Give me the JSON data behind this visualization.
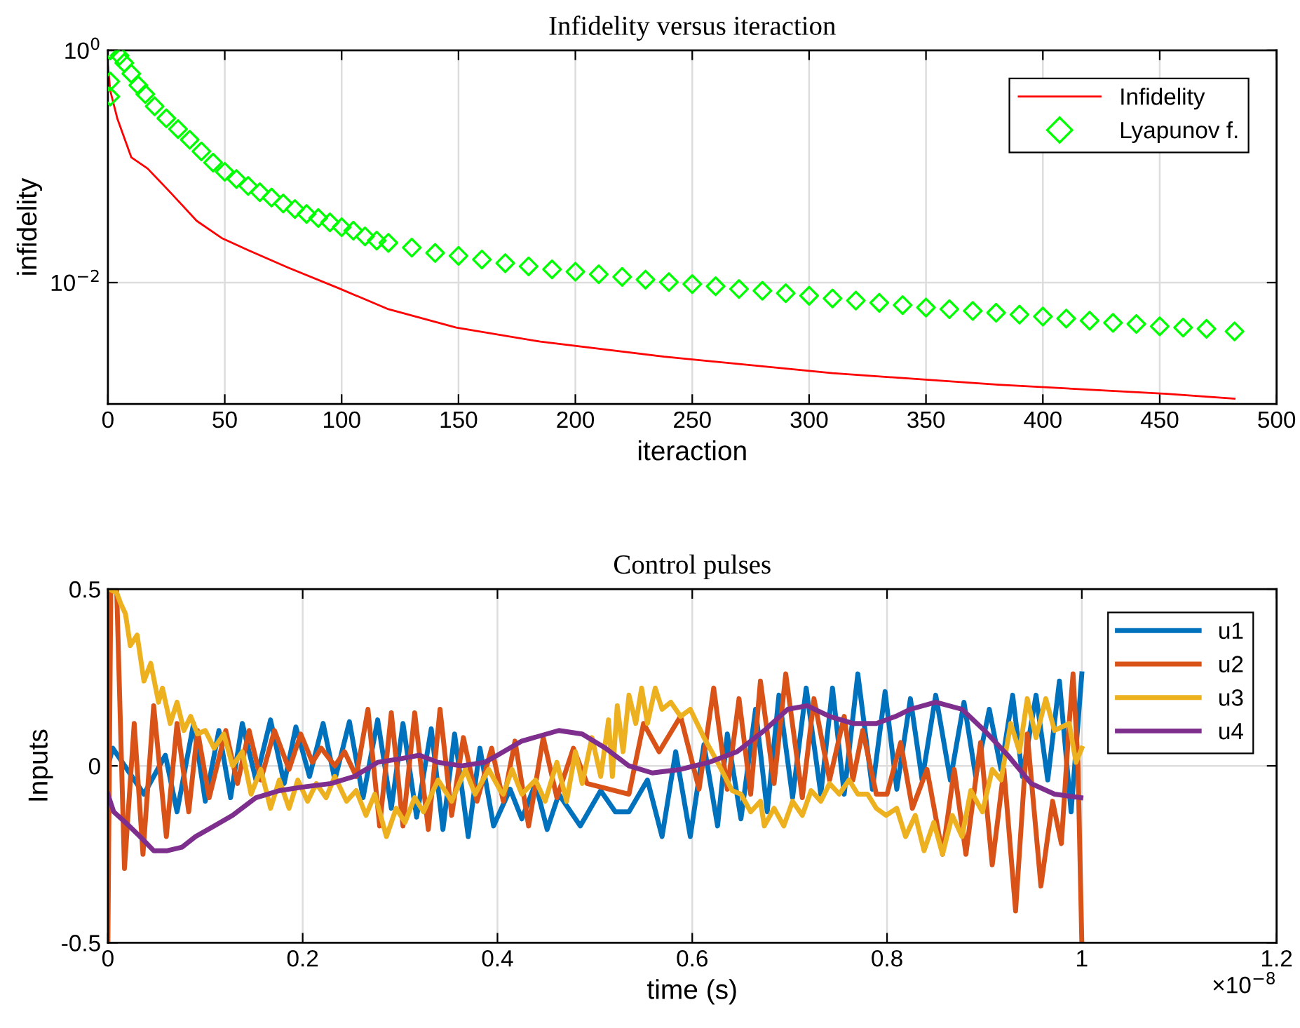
{
  "chart_data": [
    {
      "type": "line",
      "title": "Infidelity versus iteraction",
      "xlabel": "iteraction",
      "ylabel": "infidelity",
      "log": "y",
      "xlim": [
        0,
        500
      ],
      "xticks": [
        0,
        50,
        100,
        150,
        200,
        250,
        300,
        350,
        400,
        450,
        500
      ],
      "ylim": [
        0.0009,
        1
      ],
      "yticks": [
        {
          "value": 1,
          "label": "10$^{0}$"
        },
        {
          "value": 0.01,
          "label": "10$^{−2}$"
        }
      ],
      "grid": true,
      "legend": "top right",
      "series": [
        {
          "name": "Infidelity",
          "type": "line",
          "color": "#ff0000",
          "x": [
            0,
            1,
            4,
            10,
            17,
            27,
            38,
            49,
            60,
            77,
            99,
            120,
            149,
            185,
            238,
            310,
            381,
            453,
            482
          ],
          "values": [
            0.74,
            0.45,
            0.26,
            0.12,
            0.096,
            0.059,
            0.034,
            0.024,
            0.019,
            0.0135,
            0.0089,
            0.0059,
            0.0041,
            0.0031,
            0.0023,
            0.00166,
            0.00132,
            0.0011,
            0.001
          ]
        },
        {
          "name": "Lyapunov f.",
          "type": "scatter",
          "marker": "diamond",
          "color": "#00ff00",
          "x": [
            1,
            1,
            1,
            5,
            7,
            10,
            13,
            16,
            20,
            25,
            30,
            35,
            40,
            45,
            50,
            55,
            60,
            65,
            70,
            75,
            80,
            85,
            90,
            95,
            100,
            105,
            110,
            115,
            120,
            130,
            140,
            150,
            160,
            170,
            180,
            190,
            200,
            210,
            220,
            230,
            240,
            250,
            260,
            270,
            280,
            290,
            300,
            310,
            320,
            330,
            340,
            350,
            360,
            370,
            380,
            390,
            400,
            410,
            420,
            430,
            440,
            450,
            460,
            470,
            482
          ],
          "values": [
            1.0,
            0.54,
            0.4,
            0.9,
            0.78,
            0.63,
            0.5,
            0.42,
            0.33,
            0.26,
            0.21,
            0.17,
            0.135,
            0.108,
            0.09,
            0.078,
            0.068,
            0.06,
            0.054,
            0.048,
            0.043,
            0.039,
            0.036,
            0.033,
            0.03,
            0.028,
            0.025,
            0.023,
            0.022,
            0.02,
            0.018,
            0.017,
            0.0158,
            0.0147,
            0.0138,
            0.013,
            0.0124,
            0.0118,
            0.0112,
            0.0106,
            0.0101,
            0.0097,
            0.0093,
            0.0088,
            0.0085,
            0.0081,
            0.0077,
            0.0073,
            0.007,
            0.0067,
            0.0064,
            0.0061,
            0.0059,
            0.0057,
            0.0055,
            0.0053,
            0.0051,
            0.0049,
            0.0047,
            0.0045,
            0.0044,
            0.0042,
            0.0041,
            0.004,
            0.0038
          ]
        }
      ]
    },
    {
      "type": "line",
      "title": "Control pulses",
      "xlabel": "time (s)",
      "ylabel": "Inputs",
      "xlim": [
        0,
        1.2
      ],
      "xticks": [
        0,
        0.2,
        0.4,
        0.6,
        0.8,
        1,
        1.2
      ],
      "ylim": [
        -0.5,
        0.5
      ],
      "yticks": [
        -0.5,
        0,
        0.5
      ],
      "grid": true,
      "legend": "top right",
      "annotations": [
        "×10$^{−8}$"
      ],
      "series": [
        {
          "name": "u1",
          "color": "#0072bd",
          "x": [
            0.0,
            0.005,
            0.037,
            0.059,
            0.071,
            0.088,
            0.1,
            0.114,
            0.126,
            0.138,
            0.152,
            0.167,
            0.181,
            0.193,
            0.207,
            0.221,
            0.233,
            0.248,
            0.262,
            0.277,
            0.291,
            0.303,
            0.317,
            0.332,
            0.344,
            0.356,
            0.37,
            0.382,
            0.396,
            0.413,
            0.425,
            0.439,
            0.451,
            0.463,
            0.485,
            0.506,
            0.521,
            0.535,
            0.554,
            0.569,
            0.583,
            0.598,
            0.612,
            0.626,
            0.636,
            0.65,
            0.665,
            0.677,
            0.689,
            0.703,
            0.717,
            0.732,
            0.744,
            0.756,
            0.77,
            0.785,
            0.798,
            0.81,
            0.824,
            0.836,
            0.85,
            0.865,
            0.879,
            0.891,
            0.905,
            0.917,
            0.929,
            0.939,
            0.953,
            0.965,
            0.977,
            0.989,
            1.0
          ],
          "values": [
            0.0,
            0.05,
            -0.08,
            0.03,
            -0.13,
            0.12,
            -0.1,
            0.1,
            -0.09,
            0.12,
            -0.04,
            0.13,
            -0.05,
            0.11,
            -0.03,
            0.12,
            -0.04,
            0.125,
            -0.09,
            0.13,
            -0.12,
            0.12,
            -0.145,
            0.105,
            -0.18,
            0.09,
            -0.2,
            0.05,
            -0.17,
            -0.066,
            -0.15,
            -0.05,
            -0.18,
            -0.08,
            -0.17,
            -0.07,
            -0.13,
            -0.13,
            -0.04,
            -0.2,
            0.04,
            -0.2,
            0.06,
            -0.17,
            0.09,
            -0.15,
            0.16,
            -0.13,
            0.2,
            -0.09,
            0.22,
            -0.08,
            0.22,
            -0.08,
            0.26,
            -0.066,
            0.21,
            -0.066,
            0.19,
            -0.04,
            0.2,
            -0.04,
            0.18,
            -0.03,
            0.16,
            -0.01,
            0.2,
            -0.03,
            0.2,
            -0.04,
            0.24,
            -0.13,
            0.26
          ]
        },
        {
          "name": "u2",
          "color": "#d95319",
          "x": [
            0.0,
            0.003,
            0.009,
            0.017,
            0.027,
            0.036,
            0.047,
            0.06,
            0.071,
            0.083,
            0.092,
            0.104,
            0.121,
            0.133,
            0.145,
            0.157,
            0.171,
            0.186,
            0.198,
            0.21,
            0.219,
            0.233,
            0.243,
            0.255,
            0.267,
            0.279,
            0.291,
            0.303,
            0.315,
            0.329,
            0.341,
            0.353,
            0.365,
            0.379,
            0.394,
            0.406,
            0.418,
            0.432,
            0.447,
            0.461,
            0.478,
            0.492,
            0.535,
            0.55,
            0.566,
            0.588,
            0.607,
            0.622,
            0.636,
            0.648,
            0.66,
            0.67,
            0.684,
            0.696,
            0.713,
            0.725,
            0.741,
            0.756,
            0.765,
            0.775,
            0.789,
            0.8,
            0.814,
            0.826,
            0.841,
            0.857,
            0.869,
            0.881,
            0.896,
            0.908,
            0.92,
            0.932,
            0.944,
            0.958,
            0.97,
            0.979,
            0.987,
            0.991,
            0.996,
            1.0
          ],
          "values": [
            -0.5,
            0.5,
            0.5,
            -0.29,
            0.12,
            -0.25,
            0.17,
            -0.2,
            0.12,
            -0.13,
            0.1,
            -0.09,
            0.1,
            -0.05,
            0.1,
            -0.04,
            0.1,
            -0.01,
            0.09,
            0.01,
            0.05,
            0.0,
            0.04,
            -0.03,
            0.16,
            -0.17,
            0.15,
            -0.17,
            0.15,
            -0.18,
            0.16,
            -0.14,
            0.08,
            -0.1,
            0.05,
            -0.1,
            0.07,
            -0.17,
            0.08,
            -0.09,
            0.05,
            -0.05,
            -0.08,
            0.12,
            0.04,
            0.14,
            -0.066,
            0.22,
            -0.066,
            0.19,
            -0.08,
            0.24,
            -0.05,
            0.26,
            -0.09,
            0.19,
            -0.04,
            0.14,
            -0.04,
            0.1,
            -0.08,
            -0.08,
            0.066,
            -0.12,
            -0.01,
            -0.25,
            -0.01,
            -0.25,
            0.066,
            -0.28,
            -0.01,
            -0.41,
            0.09,
            -0.34,
            -0.1,
            -0.22,
            0.12,
            0.26,
            0.01,
            -0.5
          ]
        },
        {
          "name": "u3",
          "color": "#edb120",
          "x": [
            0.001,
            0.009,
            0.013,
            0.018,
            0.023,
            0.03,
            0.037,
            0.044,
            0.052,
            0.056,
            0.064,
            0.071,
            0.078,
            0.085,
            0.092,
            0.1,
            0.109,
            0.119,
            0.128,
            0.138,
            0.147,
            0.157,
            0.167,
            0.176,
            0.186,
            0.195,
            0.205,
            0.214,
            0.224,
            0.233,
            0.245,
            0.255,
            0.265,
            0.274,
            0.286,
            0.296,
            0.305,
            0.315,
            0.324,
            0.339,
            0.353,
            0.367,
            0.377,
            0.391,
            0.403,
            0.406,
            0.415,
            0.425,
            0.439,
            0.449,
            0.461,
            0.471,
            0.48,
            0.487,
            0.497,
            0.506,
            0.514,
            0.518,
            0.523,
            0.529,
            0.535,
            0.542,
            0.548,
            0.554,
            0.562,
            0.569,
            0.578,
            0.588,
            0.598,
            0.612,
            0.626,
            0.641,
            0.65,
            0.66,
            0.67,
            0.674,
            0.684,
            0.694,
            0.703,
            0.713,
            0.722,
            0.732,
            0.741,
            0.751,
            0.761,
            0.77,
            0.78,
            0.789,
            0.799,
            0.81,
            0.819,
            0.829,
            0.838,
            0.848,
            0.857,
            0.867,
            0.877,
            0.886,
            0.898,
            0.908,
            0.917,
            0.927,
            0.936,
            0.944,
            0.953,
            0.963,
            0.972,
            0.987,
            0.994,
            1.0
          ],
          "values": [
            0.5,
            0.49,
            0.46,
            0.43,
            0.34,
            0.37,
            0.24,
            0.29,
            0.18,
            0.22,
            0.12,
            0.18,
            0.1,
            0.14,
            0.09,
            0.1,
            0.05,
            0.09,
            0.0,
            0.04,
            -0.08,
            -0.01,
            -0.12,
            -0.04,
            -0.12,
            -0.04,
            -0.1,
            -0.05,
            -0.09,
            -0.03,
            -0.1,
            -0.07,
            -0.14,
            -0.08,
            -0.2,
            -0.12,
            -0.16,
            -0.09,
            -0.13,
            -0.04,
            -0.1,
            -0.01,
            -0.08,
            -0.01,
            -0.07,
            -0.08,
            -0.01,
            -0.08,
            -0.04,
            -0.1,
            0.01,
            -0.1,
            0.04,
            -0.05,
            0.08,
            -0.03,
            0.13,
            -0.03,
            0.17,
            0.04,
            0.2,
            0.12,
            0.22,
            0.12,
            0.22,
            0.16,
            0.18,
            0.14,
            0.16,
            0.08,
            0.01,
            -0.07,
            -0.08,
            -0.13,
            -0.1,
            -0.17,
            -0.12,
            -0.17,
            -0.1,
            -0.14,
            -0.07,
            -0.1,
            -0.05,
            -0.08,
            -0.04,
            -0.08,
            -0.08,
            -0.12,
            -0.14,
            -0.12,
            -0.2,
            -0.14,
            -0.24,
            -0.16,
            -0.25,
            -0.14,
            -0.2,
            -0.07,
            -0.13,
            -0.01,
            -0.04,
            0.12,
            0.04,
            0.19,
            0.08,
            0.19,
            0.1,
            0.12,
            0.01,
            0.05
          ]
        },
        {
          "name": "u4",
          "color": "#7e2f8e",
          "x": [
            0.0,
            0.006,
            0.018,
            0.033,
            0.047,
            0.061,
            0.076,
            0.09,
            0.109,
            0.128,
            0.152,
            0.176,
            0.2,
            0.229,
            0.253,
            0.277,
            0.3,
            0.32,
            0.339,
            0.363,
            0.387,
            0.4,
            0.425,
            0.463,
            0.487,
            0.511,
            0.535,
            0.559,
            0.588,
            0.617,
            0.646,
            0.674,
            0.698,
            0.718,
            0.741,
            0.765,
            0.789,
            0.809,
            0.824,
            0.85,
            0.877,
            0.9,
            0.924,
            0.948,
            0.972,
            0.999
          ],
          "values": [
            -0.08,
            -0.13,
            -0.16,
            -0.2,
            -0.24,
            -0.24,
            -0.23,
            -0.2,
            -0.17,
            -0.14,
            -0.09,
            -0.07,
            -0.06,
            -0.05,
            -0.03,
            0.01,
            0.02,
            0.03,
            0.01,
            0.0,
            0.01,
            0.03,
            0.07,
            0.1,
            0.09,
            0.05,
            0.0,
            -0.02,
            -0.01,
            0.01,
            0.04,
            0.1,
            0.16,
            0.17,
            0.14,
            0.12,
            0.12,
            0.14,
            0.16,
            0.18,
            0.16,
            0.1,
            0.03,
            -0.05,
            -0.08,
            -0.09
          ]
        }
      ]
    }
  ]
}
